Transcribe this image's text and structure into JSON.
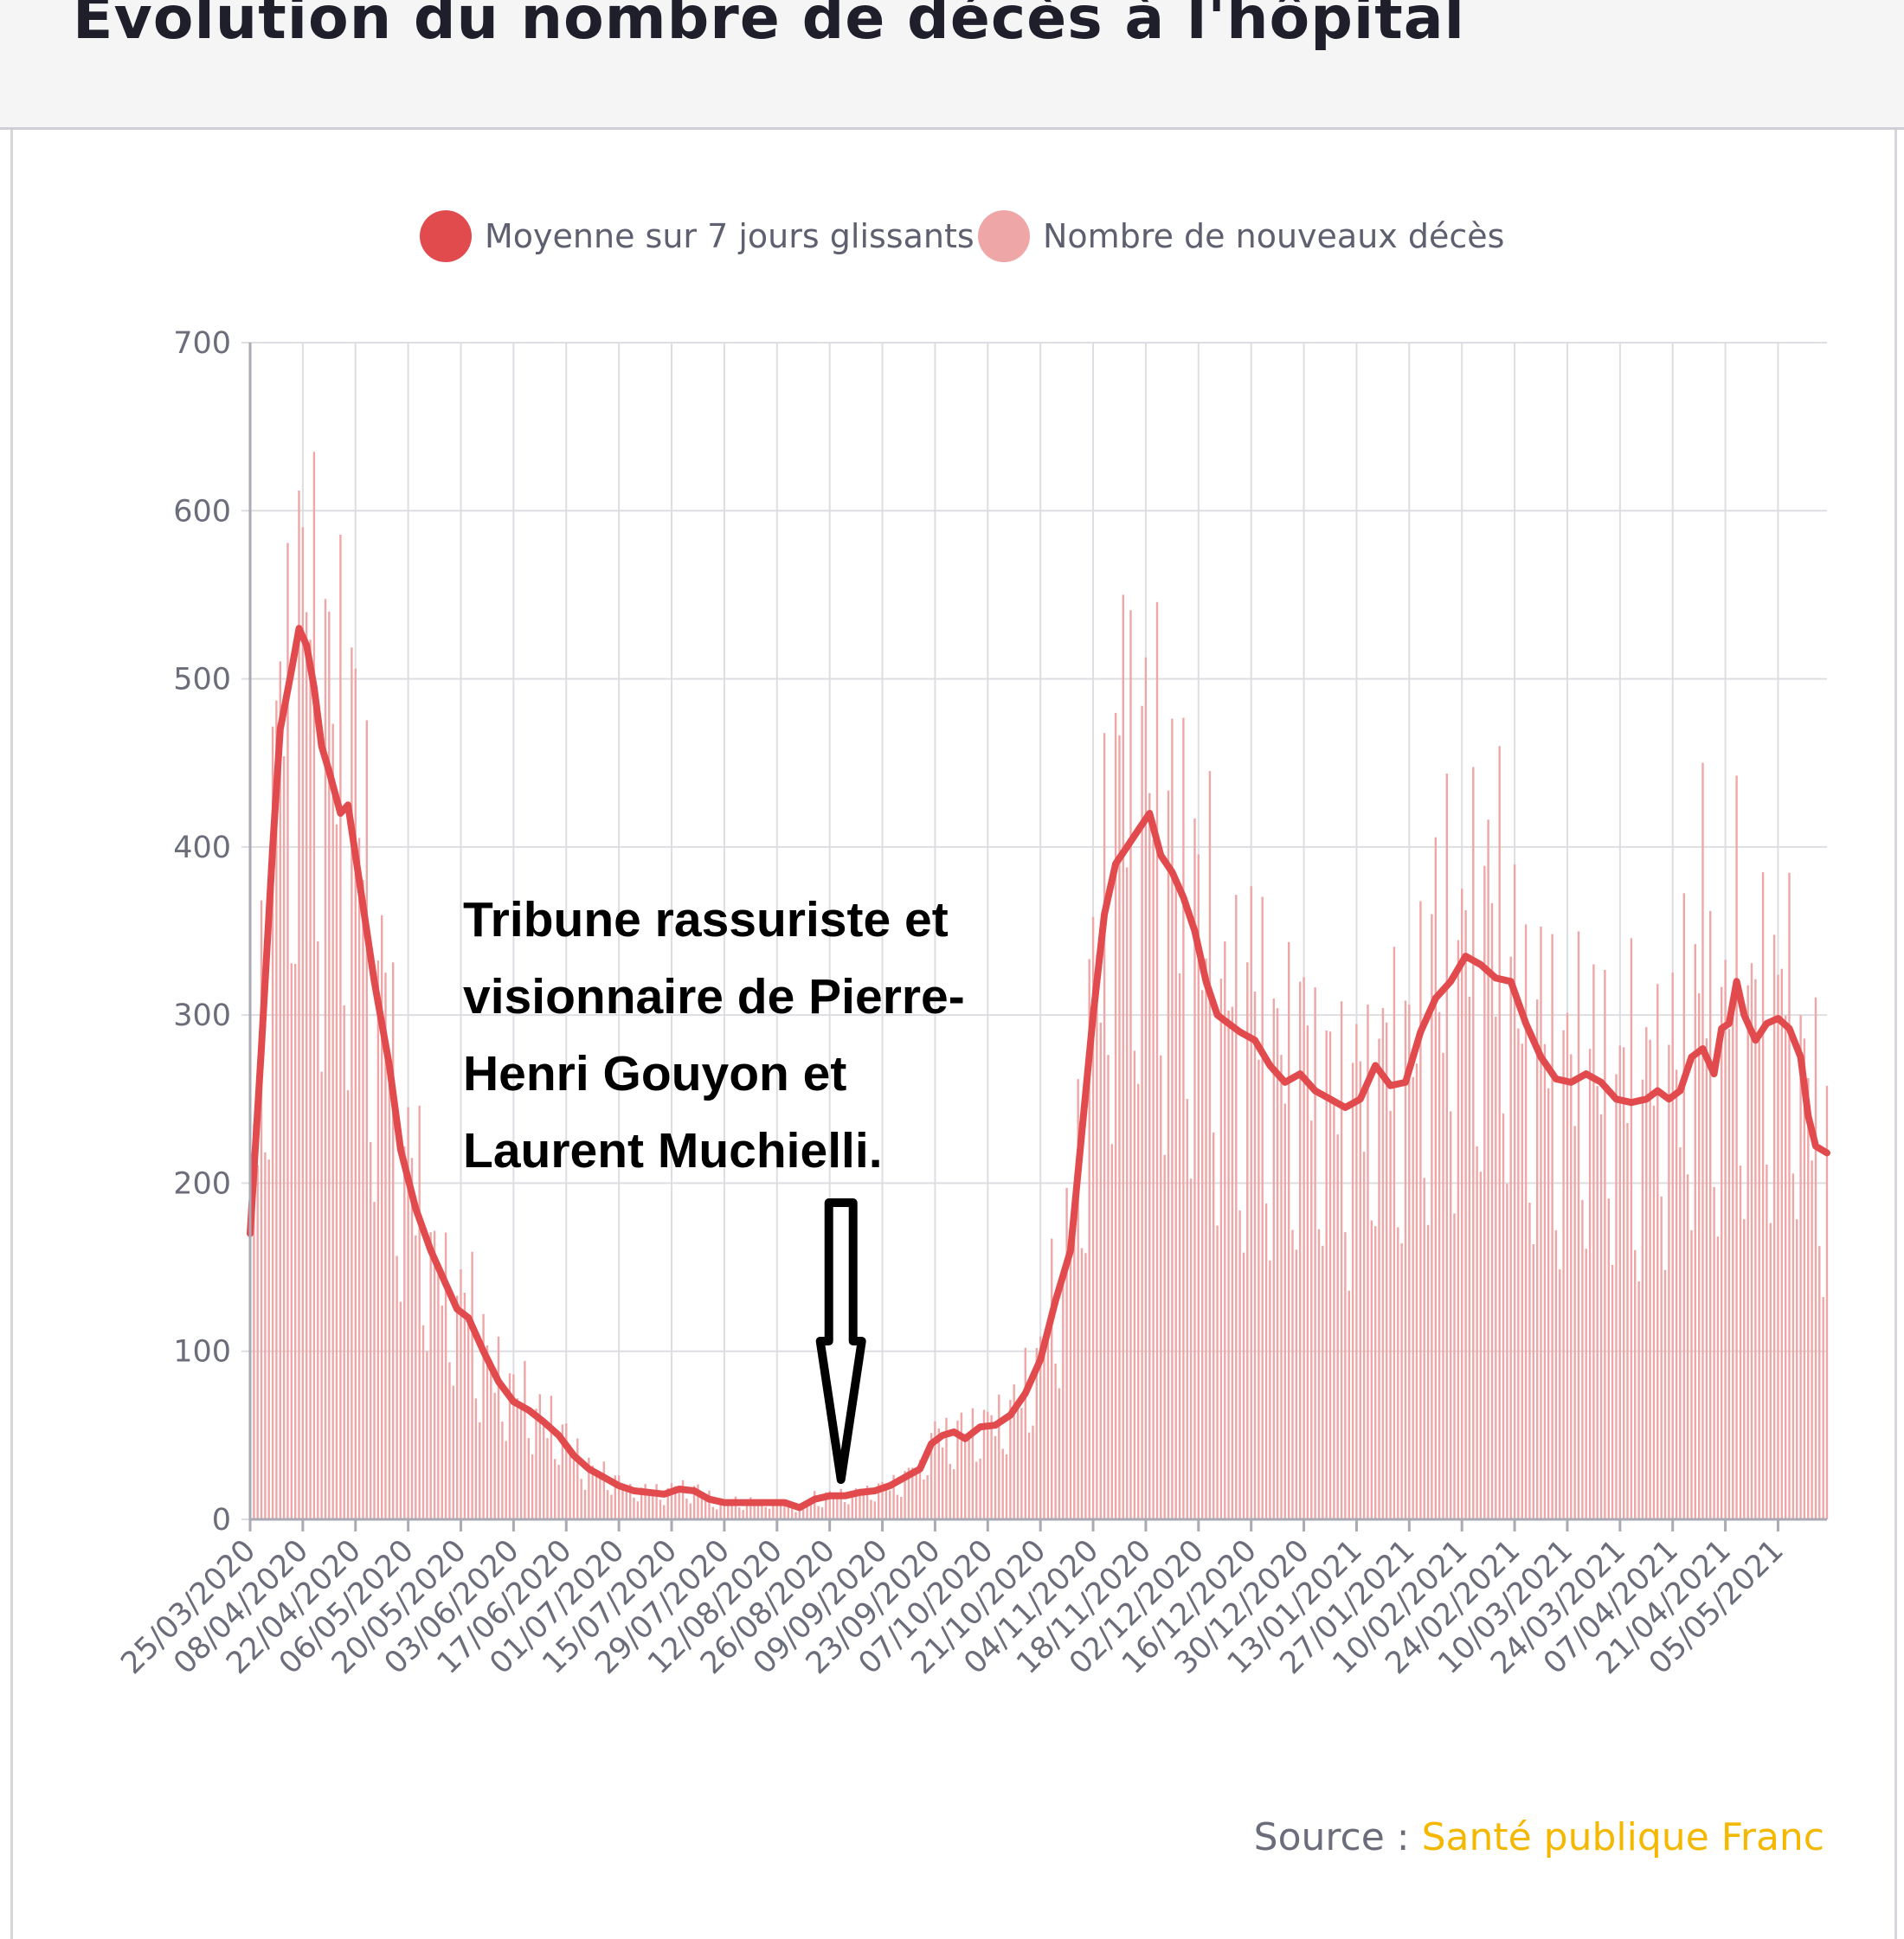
{
  "header": {
    "title": "Evolution du nombre de décès à l'hôpital"
  },
  "source": {
    "label": "Source :",
    "name": "Santé publique Franc"
  },
  "annotation": {
    "lines": [
      "Tribune rassuriste et",
      "visionnaire de Pierre-",
      "Henri Gouyon et",
      "Laurent Muchielli."
    ],
    "date": "2020-08-29"
  },
  "colors": {
    "average": "#e24b4e",
    "bars": "#eea6a6",
    "grid": "#dddde2",
    "arrow": "#000000"
  },
  "chart_data": {
    "type": "bar",
    "title": "Evolution du nombre de décès à l'hôpital",
    "xlabel": "",
    "ylabel": "",
    "ylim": [
      0,
      700
    ],
    "yticks": [
      0,
      100,
      200,
      300,
      400,
      500,
      600,
      700
    ],
    "x_start": "2020-03-25",
    "x_end": "2021-05-18",
    "grid": true,
    "legend_position": "top-center",
    "xtick_labels": [
      "25/03/2020",
      "08/04/2020",
      "22/04/2020",
      "06/05/2020",
      "20/05/2020",
      "03/06/2020",
      "17/06/2020",
      "01/07/2020",
      "15/07/2020",
      "29/07/2020",
      "12/08/2020",
      "26/08/2020",
      "09/09/2020",
      "23/09/2020",
      "07/10/2020",
      "21/10/2020",
      "04/11/2020",
      "18/11/2020",
      "02/12/2020",
      "16/12/2020",
      "30/12/2020",
      "13/01/2021",
      "27/01/2021",
      "10/02/2021",
      "24/02/2021",
      "10/03/2021",
      "24/03/2021",
      "07/04/2021",
      "21/04/2021",
      "05/05/2021"
    ],
    "series": [
      {
        "name": "Moyenne sur 7 jours glissants",
        "type": "line",
        "color": "#e24b4e",
        "points": [
          [
            "2020-03-25",
            170
          ],
          [
            "2020-03-28",
            280
          ],
          [
            "2020-03-31",
            400
          ],
          [
            "2020-04-02",
            470
          ],
          [
            "2020-04-05",
            505
          ],
          [
            "2020-04-07",
            530
          ],
          [
            "2020-04-09",
            520
          ],
          [
            "2020-04-11",
            495
          ],
          [
            "2020-04-13",
            460
          ],
          [
            "2020-04-15",
            445
          ],
          [
            "2020-04-18",
            420
          ],
          [
            "2020-04-20",
            425
          ],
          [
            "2020-04-23",
            380
          ],
          [
            "2020-04-27",
            320
          ],
          [
            "2020-05-01",
            270
          ],
          [
            "2020-05-04",
            220
          ],
          [
            "2020-05-08",
            185
          ],
          [
            "2020-05-12",
            160
          ],
          [
            "2020-05-16",
            140
          ],
          [
            "2020-05-19",
            125
          ],
          [
            "2020-05-22",
            120
          ],
          [
            "2020-05-26",
            100
          ],
          [
            "2020-05-30",
            82
          ],
          [
            "2020-06-03",
            70
          ],
          [
            "2020-06-07",
            65
          ],
          [
            "2020-06-11",
            58
          ],
          [
            "2020-06-15",
            50
          ],
          [
            "2020-06-19",
            38
          ],
          [
            "2020-06-23",
            30
          ],
          [
            "2020-06-27",
            25
          ],
          [
            "2020-07-01",
            20
          ],
          [
            "2020-07-05",
            17
          ],
          [
            "2020-07-09",
            16
          ],
          [
            "2020-07-13",
            15
          ],
          [
            "2020-07-17",
            18
          ],
          [
            "2020-07-21",
            17
          ],
          [
            "2020-07-25",
            12
          ],
          [
            "2020-07-29",
            10
          ],
          [
            "2020-08-02",
            10
          ],
          [
            "2020-08-06",
            10
          ],
          [
            "2020-08-10",
            10
          ],
          [
            "2020-08-14",
            10
          ],
          [
            "2020-08-18",
            7
          ],
          [
            "2020-08-22",
            12
          ],
          [
            "2020-08-26",
            14
          ],
          [
            "2020-08-30",
            14
          ],
          [
            "2020-09-03",
            16
          ],
          [
            "2020-09-07",
            17
          ],
          [
            "2020-09-11",
            20
          ],
          [
            "2020-09-15",
            25
          ],
          [
            "2020-09-19",
            30
          ],
          [
            "2020-09-22",
            45
          ],
          [
            "2020-09-25",
            50
          ],
          [
            "2020-09-28",
            52
          ],
          [
            "2020-10-01",
            48
          ],
          [
            "2020-10-05",
            55
          ],
          [
            "2020-10-09",
            56
          ],
          [
            "2020-10-13",
            62
          ],
          [
            "2020-10-17",
            75
          ],
          [
            "2020-10-21",
            95
          ],
          [
            "2020-10-25",
            130
          ],
          [
            "2020-10-29",
            160
          ],
          [
            "2020-11-01",
            230
          ],
          [
            "2020-11-04",
            300
          ],
          [
            "2020-11-07",
            360
          ],
          [
            "2020-11-10",
            390
          ],
          [
            "2020-11-13",
            400
          ],
          [
            "2020-11-16",
            410
          ],
          [
            "2020-11-19",
            420
          ],
          [
            "2020-11-22",
            395
          ],
          [
            "2020-11-25",
            385
          ],
          [
            "2020-11-28",
            370
          ],
          [
            "2020-12-01",
            350
          ],
          [
            "2020-12-04",
            320
          ],
          [
            "2020-12-07",
            300
          ],
          [
            "2020-12-10",
            295
          ],
          [
            "2020-12-13",
            290
          ],
          [
            "2020-12-17",
            285
          ],
          [
            "2020-12-21",
            270
          ],
          [
            "2020-12-25",
            260
          ],
          [
            "2020-12-29",
            265
          ],
          [
            "2021-01-02",
            255
          ],
          [
            "2021-01-06",
            250
          ],
          [
            "2021-01-10",
            245
          ],
          [
            "2021-01-14",
            250
          ],
          [
            "2021-01-18",
            270
          ],
          [
            "2021-01-22",
            258
          ],
          [
            "2021-01-26",
            260
          ],
          [
            "2021-01-30",
            290
          ],
          [
            "2021-02-03",
            310
          ],
          [
            "2021-02-07",
            320
          ],
          [
            "2021-02-11",
            335
          ],
          [
            "2021-02-15",
            330
          ],
          [
            "2021-02-19",
            322
          ],
          [
            "2021-02-23",
            320
          ],
          [
            "2021-02-27",
            295
          ],
          [
            "2021-03-03",
            275
          ],
          [
            "2021-03-07",
            262
          ],
          [
            "2021-03-11",
            260
          ],
          [
            "2021-03-15",
            265
          ],
          [
            "2021-03-19",
            260
          ],
          [
            "2021-03-23",
            250
          ],
          [
            "2021-03-27",
            248
          ],
          [
            "2021-03-31",
            250
          ],
          [
            "2021-04-03",
            255
          ],
          [
            "2021-04-06",
            250
          ],
          [
            "2021-04-09",
            255
          ],
          [
            "2021-04-12",
            275
          ],
          [
            "2021-04-15",
            280
          ],
          [
            "2021-04-18",
            265
          ],
          [
            "2021-04-20",
            292
          ],
          [
            "2021-04-22",
            295
          ],
          [
            "2021-04-24",
            320
          ],
          [
            "2021-04-26",
            300
          ],
          [
            "2021-04-29",
            285
          ],
          [
            "2021-05-02",
            295
          ],
          [
            "2021-05-05",
            298
          ],
          [
            "2021-05-08",
            292
          ],
          [
            "2021-05-11",
            275
          ],
          [
            "2021-05-13",
            240
          ],
          [
            "2021-05-15",
            222
          ],
          [
            "2021-05-18",
            218
          ]
        ]
      },
      {
        "name": "Nombre de nouveaux décès",
        "type": "bar",
        "color": "#eea6a6",
        "note": "daily values fluctuate around the 7-day average; peaks ~610 (April 2020), ~550 (November 2020), ~460 (February 2021)",
        "peaks": [
          [
            "2020-04-07",
            612
          ],
          [
            "2020-11-12",
            550
          ],
          [
            "2021-02-20",
            460
          ],
          [
            "2021-04-15",
            450
          ]
        ]
      }
    ]
  }
}
